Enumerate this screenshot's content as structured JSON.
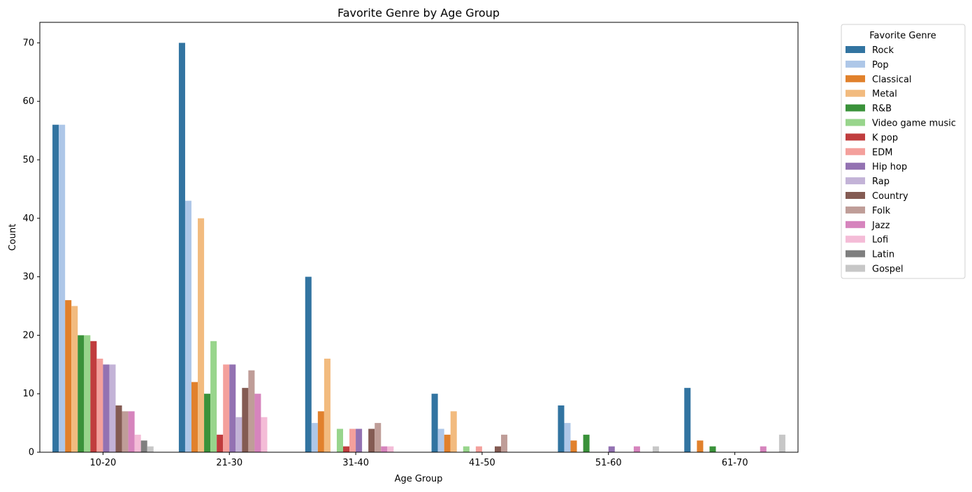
{
  "chart_data": {
    "type": "bar",
    "title": "Favorite Genre by Age Group",
    "xlabel": "Age Group",
    "ylabel": "Count",
    "ylim": [
      0,
      73.5
    ],
    "yticks": [
      0,
      10,
      20,
      30,
      40,
      50,
      60,
      70
    ],
    "grid": false,
    "legend": {
      "title": "Favorite Genre",
      "placement": "outside-top-right"
    },
    "categories": [
      "10-20",
      "21-30",
      "31-40",
      "41-50",
      "51-60",
      "61-70"
    ],
    "series": [
      {
        "name": "Rock",
        "color": "#3274a1",
        "values": [
          56,
          70,
          30,
          10,
          8,
          11
        ]
      },
      {
        "name": "Pop",
        "color": "#aec7e8",
        "values": [
          56,
          43,
          5,
          4,
          5,
          0
        ]
      },
      {
        "name": "Classical",
        "color": "#e1812c",
        "values": [
          26,
          12,
          7,
          3,
          2,
          2
        ]
      },
      {
        "name": "Metal",
        "color": "#f2bb7f",
        "values": [
          25,
          40,
          16,
          7,
          0,
          0
        ]
      },
      {
        "name": "R&B",
        "color": "#3a923a",
        "values": [
          20,
          10,
          0,
          0,
          3,
          1
        ]
      },
      {
        "name": "Video game music",
        "color": "#98d58c",
        "values": [
          20,
          19,
          4,
          1,
          0,
          0
        ]
      },
      {
        "name": "K pop",
        "color": "#c03d3e",
        "values": [
          19,
          3,
          1,
          0,
          0,
          0
        ]
      },
      {
        "name": "EDM",
        "color": "#f4a09c",
        "values": [
          16,
          15,
          4,
          1,
          0,
          0
        ]
      },
      {
        "name": "Hip hop",
        "color": "#9372b2",
        "values": [
          15,
          15,
          4,
          0,
          1,
          0
        ]
      },
      {
        "name": "Rap",
        "color": "#c3b3d7",
        "values": [
          15,
          6,
          0,
          0,
          0,
          0
        ]
      },
      {
        "name": "Country",
        "color": "#845b53",
        "values": [
          8,
          11,
          4,
          1,
          0,
          0
        ]
      },
      {
        "name": "Folk",
        "color": "#bf9d98",
        "values": [
          7,
          14,
          5,
          3,
          0,
          0
        ]
      },
      {
        "name": "Jazz",
        "color": "#d684bd",
        "values": [
          7,
          10,
          1,
          0,
          1,
          1
        ]
      },
      {
        "name": "Lofi",
        "color": "#f4bcd7",
        "values": [
          3,
          6,
          1,
          0,
          0,
          0
        ]
      },
      {
        "name": "Latin",
        "color": "#7f7f7f",
        "values": [
          2,
          0,
          0,
          0,
          0,
          0
        ]
      },
      {
        "name": "Gospel",
        "color": "#c7c7c7",
        "values": [
          1,
          0,
          0,
          0,
          1,
          3
        ]
      }
    ]
  }
}
